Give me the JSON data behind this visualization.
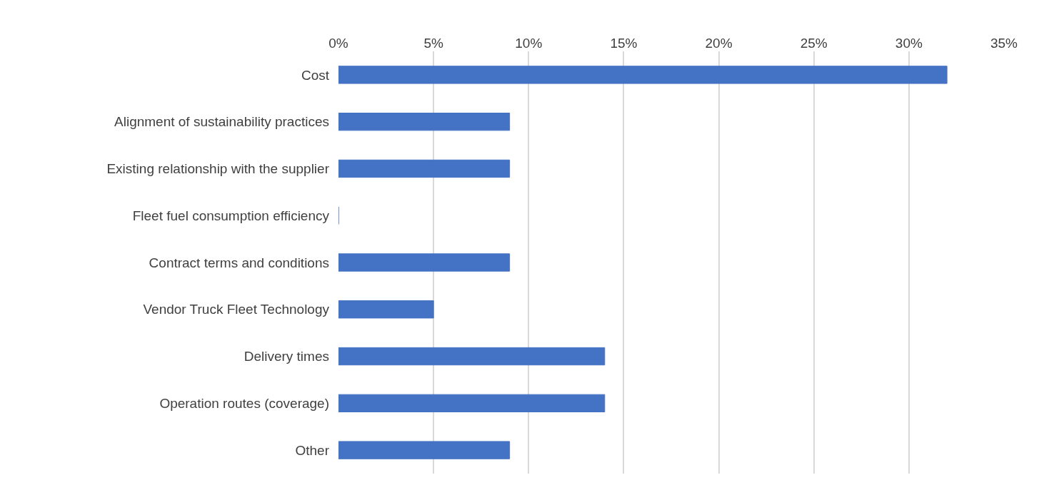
{
  "chart_data": {
    "type": "bar",
    "orientation": "horizontal",
    "categories": [
      "Cost",
      "Alignment of sustainability practices",
      "Existing relationship with the supplier",
      "Fleet fuel consumption efficiency",
      "Contract terms and conditions",
      "Vendor Truck Fleet Technology",
      "Delivery times",
      "Operation routes (coverage)",
      "Other"
    ],
    "values": [
      32,
      9,
      9,
      0,
      9,
      5,
      14,
      14,
      9
    ],
    "color": "#4472c4",
    "xlim": [
      0,
      35
    ],
    "xticks": [
      {
        "value": 0,
        "label": "0%"
      },
      {
        "value": 5,
        "label": "5%"
      },
      {
        "value": 10,
        "label": "10%"
      },
      {
        "value": 15,
        "label": "15%"
      },
      {
        "value": 20,
        "label": "20%"
      },
      {
        "value": 25,
        "label": "25%"
      },
      {
        "value": 30,
        "label": "30%"
      },
      {
        "value": 35,
        "label": "35%"
      }
    ],
    "grid": "x",
    "legend": false
  }
}
